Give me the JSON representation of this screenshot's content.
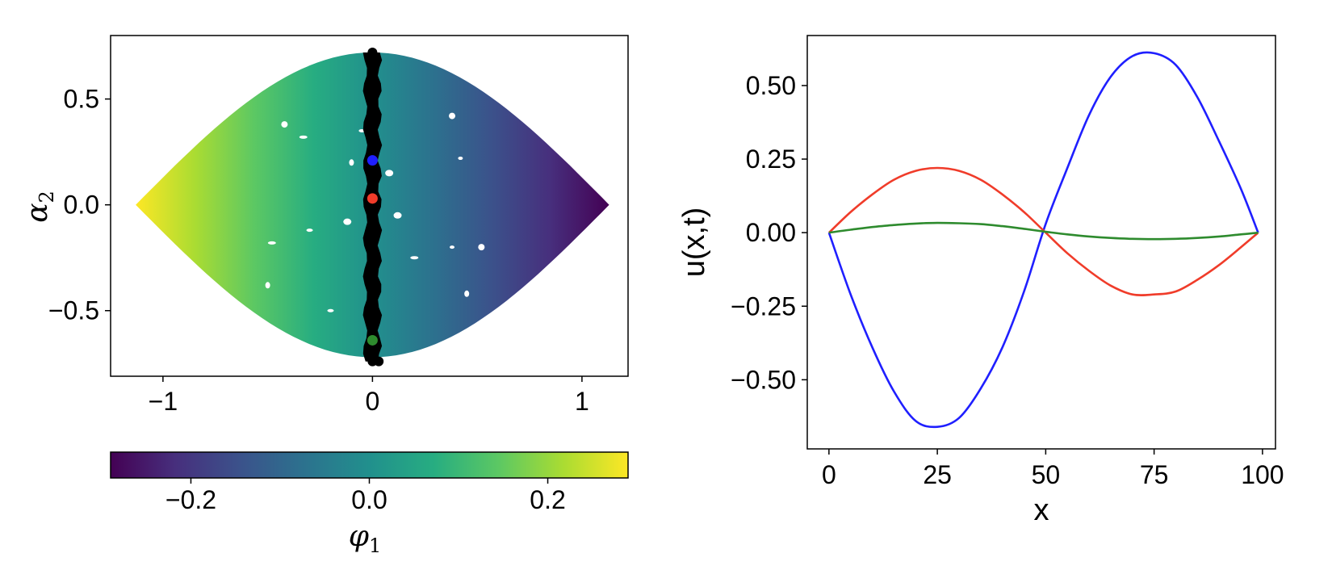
{
  "chart_data": [
    {
      "type": "scatter",
      "title": "",
      "xlabel": "",
      "ylabel": {
        "symbol": "α",
        "subscript": "2"
      },
      "xlim": [
        -1.25,
        1.22
      ],
      "ylim": [
        -0.81,
        0.8
      ],
      "xticks": [
        {
          "value": -1,
          "label": "−1"
        },
        {
          "value": 0,
          "label": "0"
        },
        {
          "value": 1,
          "label": "1"
        }
      ],
      "yticks": [
        {
          "value": 0.5,
          "label": "0.5"
        },
        {
          "value": 0.0,
          "label": "0.0"
        },
        {
          "value": -0.5,
          "label": "−0.5"
        }
      ],
      "grid": false,
      "color_mapping": "color encodes phi_1, approximately -0.24 * x",
      "region": {
        "x_min": -1.13,
        "x_max": 1.13,
        "half_height_at_center": 0.72
      },
      "highlight_band": {
        "x_center": 0.0,
        "half_width": 0.035,
        "y_range": [
          -0.74,
          0.72
        ],
        "color": "#000000"
      },
      "highlight_points": [
        {
          "name": "blue",
          "x": 0.0,
          "y": 0.21,
          "color": "#1f1fff"
        },
        {
          "name": "red",
          "x": 0.0,
          "y": 0.03,
          "color": "#f03c2a"
        },
        {
          "name": "green",
          "x": 0.0,
          "y": -0.64,
          "color": "#2e8b2e"
        }
      ],
      "colorbar": {
        "label": {
          "symbol": "φ",
          "subscript": "1"
        },
        "range": [
          -0.29,
          0.29
        ],
        "ticks": [
          {
            "value": -0.2,
            "label": "−0.2"
          },
          {
            "value": 0.0,
            "label": "0.0"
          },
          {
            "value": 0.2,
            "label": "0.2"
          }
        ],
        "colormap": "viridis"
      }
    },
    {
      "type": "line",
      "title": "",
      "xlabel": "x",
      "ylabel": "u(x,t)",
      "xlim": [
        -5,
        103
      ],
      "ylim": [
        -0.735,
        0.67
      ],
      "xticks": [
        {
          "value": 0,
          "label": "0"
        },
        {
          "value": 25,
          "label": "25"
        },
        {
          "value": 50,
          "label": "50"
        },
        {
          "value": 75,
          "label": "75"
        },
        {
          "value": 100,
          "label": "100"
        }
      ],
      "yticks": [
        {
          "value": 0.5,
          "label": "0.50"
        },
        {
          "value": 0.25,
          "label": "0.25"
        },
        {
          "value": 0.0,
          "label": "0.00"
        },
        {
          "value": -0.25,
          "label": "−0.25"
        },
        {
          "value": -0.5,
          "label": "−0.50"
        }
      ],
      "grid": false,
      "x": [
        0,
        5,
        10,
        15,
        20,
        25,
        30,
        35,
        40,
        45,
        50,
        55,
        60,
        65,
        70,
        75,
        80,
        85,
        90,
        95,
        99
      ],
      "series": [
        {
          "name": "blue",
          "color": "#1f1fff",
          "values": [
            0,
            -0.21,
            -0.39,
            -0.54,
            -0.64,
            -0.66,
            -0.63,
            -0.53,
            -0.39,
            -0.2,
            0.03,
            0.22,
            0.4,
            0.53,
            0.6,
            0.61,
            0.57,
            0.46,
            0.31,
            0.15,
            0
          ]
        },
        {
          "name": "red",
          "color": "#f03c2a",
          "values": [
            0,
            0.07,
            0.13,
            0.18,
            0.21,
            0.22,
            0.21,
            0.18,
            0.13,
            0.07,
            0.0,
            -0.07,
            -0.13,
            -0.18,
            -0.21,
            -0.21,
            -0.2,
            -0.16,
            -0.11,
            -0.05,
            0
          ]
        },
        {
          "name": "green",
          "color": "#2e8b2e",
          "values": [
            0,
            0.01,
            0.019,
            0.026,
            0.031,
            0.033,
            0.032,
            0.029,
            0.022,
            0.013,
            0.003,
            -0.006,
            -0.013,
            -0.018,
            -0.021,
            -0.022,
            -0.021,
            -0.018,
            -0.013,
            -0.006,
            0
          ]
        }
      ]
    }
  ]
}
